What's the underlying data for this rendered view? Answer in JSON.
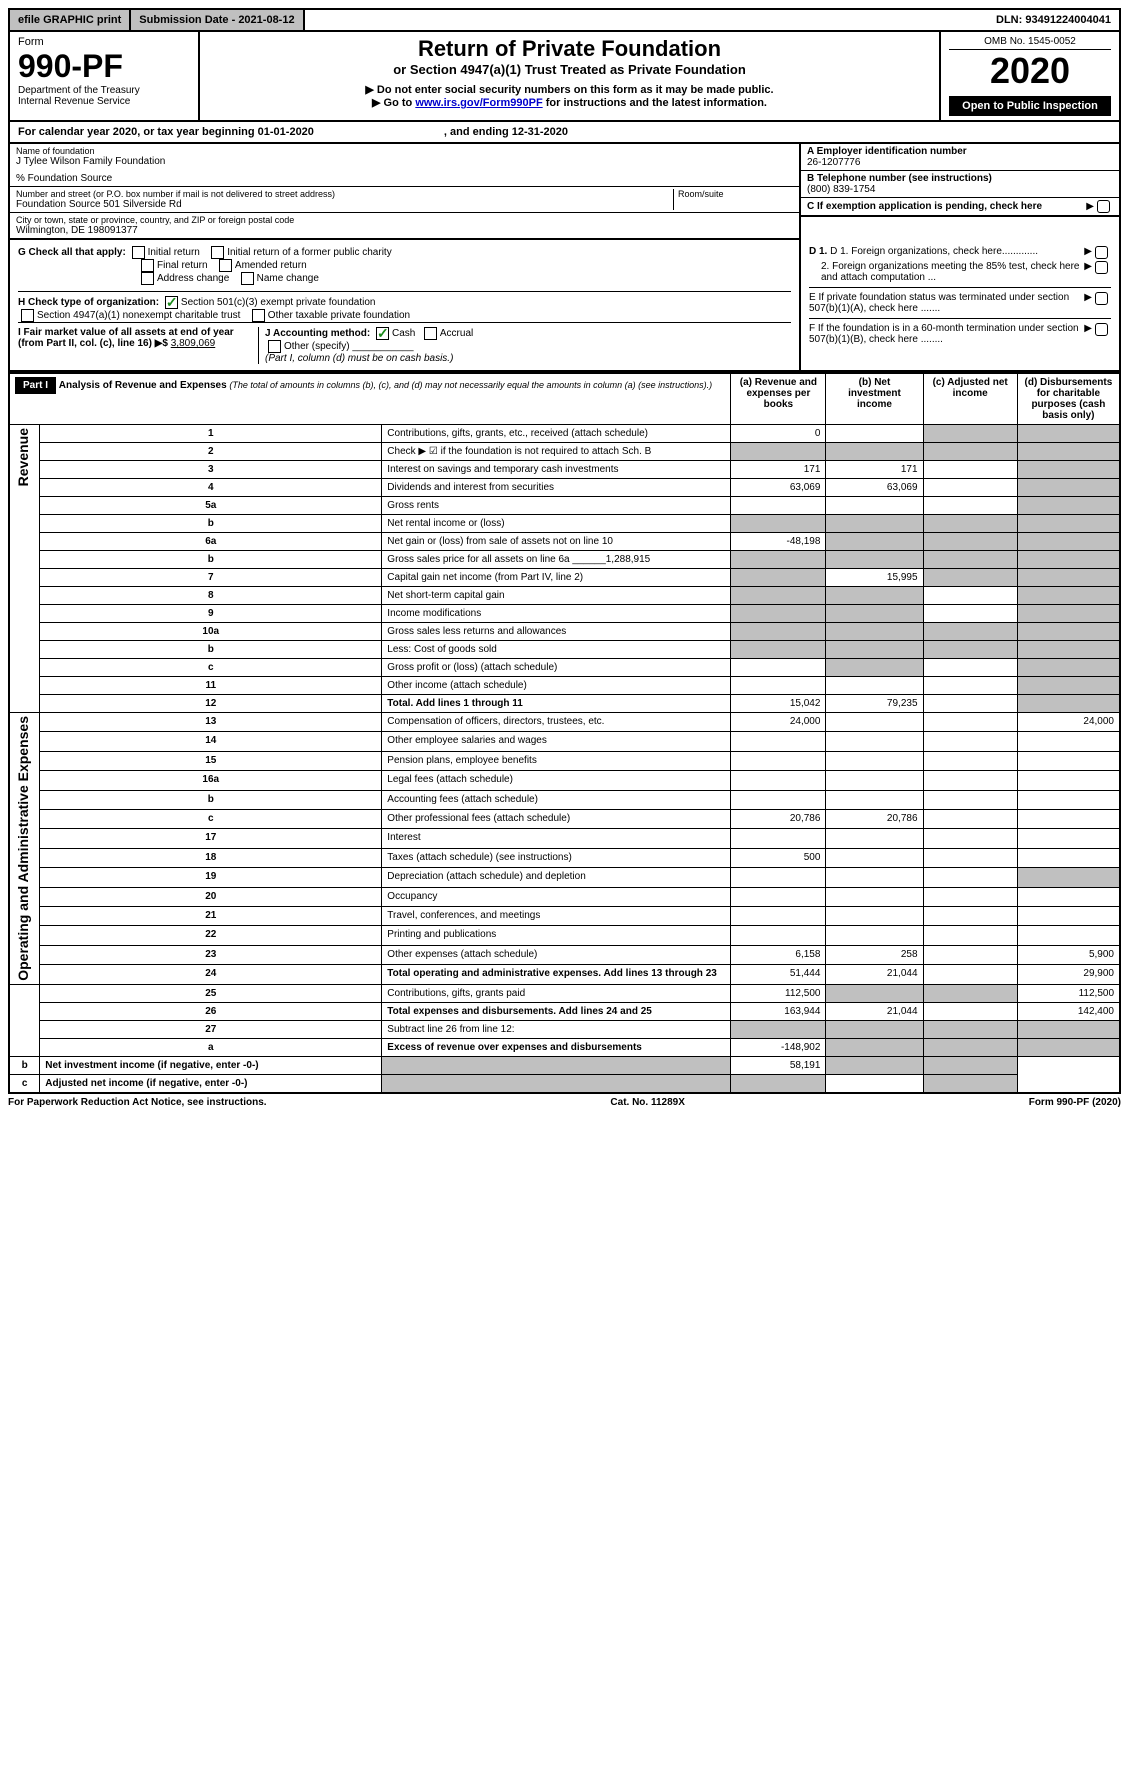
{
  "top_bar": {
    "efile": "efile GRAPHIC print",
    "submission": "Submission Date - 2021-08-12",
    "dln": "DLN: 93491224004041"
  },
  "header": {
    "form_label": "Form",
    "form_number": "990-PF",
    "dept": "Department of the Treasury",
    "irs": "Internal Revenue Service",
    "title": "Return of Private Foundation",
    "subtitle": "or Section 4947(a)(1) Trust Treated as Private Foundation",
    "note1": "▶ Do not enter social security numbers on this form as it may be made public.",
    "note2_pre": "▶ Go to ",
    "note2_link": "www.irs.gov/Form990PF",
    "note2_post": " for instructions and the latest information.",
    "omb": "OMB No. 1545-0052",
    "year": "2020",
    "open": "Open to Public Inspection"
  },
  "cal_year": {
    "text": "For calendar year 2020, or tax year beginning 01-01-2020",
    "ending": ", and ending 12-31-2020"
  },
  "foundation": {
    "name_label": "Name of foundation",
    "name": "J Tylee Wilson Family Foundation",
    "care_of": "% Foundation Source",
    "addr_label": "Number and street (or P.O. box number if mail is not delivered to street address)",
    "addr": "Foundation Source 501 Silverside Rd",
    "room_label": "Room/suite",
    "city_label": "City or town, state or province, country, and ZIP or foreign postal code",
    "city": "Wilmington, DE  198091377",
    "ein_label": "A Employer identification number",
    "ein": "26-1207776",
    "phone_label": "B  Telephone number (see instructions)",
    "phone": "(800) 839-1754",
    "c_label": "C  If exemption application is pending, check here"
  },
  "checks": {
    "g_label": "G Check all that apply:",
    "g_opts": [
      "Initial return",
      "Initial return of a former public charity",
      "Final return",
      "Amended return",
      "Address change",
      "Name change"
    ],
    "h_label": "H Check type of organization:",
    "h_501c3": "Section 501(c)(3) exempt private foundation",
    "h_4947": "Section 4947(a)(1) nonexempt charitable trust",
    "h_other": "Other taxable private foundation",
    "i_label": "I Fair market value of all assets at end of year (from Part II, col. (c), line 16) ▶$ ",
    "i_value": "3,809,069",
    "j_label": "J Accounting method:",
    "j_cash": "Cash",
    "j_accrual": "Accrual",
    "j_other": "Other (specify)",
    "j_note": "(Part I, column (d) must be on cash basis.)",
    "d1": "D 1. Foreign organizations, check here.............",
    "d2": "2. Foreign organizations meeting the 85% test, check here and attach computation ...",
    "e_label": "E  If private foundation status was terminated under section 507(b)(1)(A), check here .......",
    "f_label": "F  If the foundation is in a 60-month termination under section 507(b)(1)(B), check here ........"
  },
  "part1": {
    "label": "Part I",
    "title": "Analysis of Revenue and Expenses",
    "title_note": "(The total of amounts in columns (b), (c), and (d) may not necessarily equal the amounts in column (a) (see instructions).)",
    "col_a": "(a) Revenue and expenses per books",
    "col_b": "(b) Net investment income",
    "col_c": "(c) Adjusted net income",
    "col_d": "(d) Disbursements for charitable purposes (cash basis only)",
    "side_revenue": "Revenue",
    "side_expenses": "Operating and Administrative Expenses"
  },
  "rows": [
    {
      "n": "1",
      "desc": "Contributions, gifts, grants, etc., received (attach schedule)",
      "a": "0",
      "b": "",
      "c": "",
      "d": "",
      "shade_c": true,
      "shade_d": true
    },
    {
      "n": "2",
      "desc": "Check ▶ ☑ if the foundation is not required to attach Sch. B",
      "a": "",
      "b": "",
      "c": "",
      "d": "",
      "shade_all": true
    },
    {
      "n": "3",
      "desc": "Interest on savings and temporary cash investments",
      "a": "171",
      "b": "171",
      "c": "",
      "d": "",
      "shade_d": true
    },
    {
      "n": "4",
      "desc": "Dividends and interest from securities",
      "a": "63,069",
      "b": "63,069",
      "c": "",
      "d": "",
      "shade_d": true
    },
    {
      "n": "5a",
      "desc": "Gross rents",
      "a": "",
      "b": "",
      "c": "",
      "d": "",
      "shade_d": true
    },
    {
      "n": "b",
      "desc": "Net rental income or (loss)",
      "a": "",
      "b": "",
      "c": "",
      "d": "",
      "shade_all": true
    },
    {
      "n": "6a",
      "desc": "Net gain or (loss) from sale of assets not on line 10",
      "a": "-48,198",
      "b": "",
      "c": "",
      "d": "",
      "shade_bcd": true
    },
    {
      "n": "b",
      "desc": "Gross sales price for all assets on line 6a ______1,288,915",
      "a": "",
      "b": "",
      "c": "",
      "d": "",
      "shade_all": true
    },
    {
      "n": "7",
      "desc": "Capital gain net income (from Part IV, line 2)",
      "a": "",
      "b": "15,995",
      "c": "",
      "d": "",
      "shade_a": true,
      "shade_cd": true
    },
    {
      "n": "8",
      "desc": "Net short-term capital gain",
      "a": "",
      "b": "",
      "c": "",
      "d": "",
      "shade_ab": true,
      "shade_d": true
    },
    {
      "n": "9",
      "desc": "Income modifications",
      "a": "",
      "b": "",
      "c": "",
      "d": "",
      "shade_ab": true,
      "shade_d": true
    },
    {
      "n": "10a",
      "desc": "Gross sales less returns and allowances",
      "a": "",
      "b": "",
      "c": "",
      "d": "",
      "shade_all": true
    },
    {
      "n": "b",
      "desc": "Less: Cost of goods sold",
      "a": "",
      "b": "",
      "c": "",
      "d": "",
      "shade_all": true
    },
    {
      "n": "c",
      "desc": "Gross profit or (loss) (attach schedule)",
      "a": "",
      "b": "",
      "c": "",
      "d": "",
      "shade_b": true,
      "shade_d": true
    },
    {
      "n": "11",
      "desc": "Other income (attach schedule)",
      "a": "",
      "b": "",
      "c": "",
      "d": "",
      "shade_d": true
    },
    {
      "n": "12",
      "desc": "Total. Add lines 1 through 11",
      "a": "15,042",
      "b": "79,235",
      "c": "",
      "d": "",
      "shade_d": true,
      "bold": true
    },
    {
      "n": "13",
      "desc": "Compensation of officers, directors, trustees, etc.",
      "a": "24,000",
      "b": "",
      "c": "",
      "d": "24,000"
    },
    {
      "n": "14",
      "desc": "Other employee salaries and wages",
      "a": "",
      "b": "",
      "c": "",
      "d": ""
    },
    {
      "n": "15",
      "desc": "Pension plans, employee benefits",
      "a": "",
      "b": "",
      "c": "",
      "d": ""
    },
    {
      "n": "16a",
      "desc": "Legal fees (attach schedule)",
      "a": "",
      "b": "",
      "c": "",
      "d": ""
    },
    {
      "n": "b",
      "desc": "Accounting fees (attach schedule)",
      "a": "",
      "b": "",
      "c": "",
      "d": ""
    },
    {
      "n": "c",
      "desc": "Other professional fees (attach schedule)",
      "a": "20,786",
      "b": "20,786",
      "c": "",
      "d": ""
    },
    {
      "n": "17",
      "desc": "Interest",
      "a": "",
      "b": "",
      "c": "",
      "d": ""
    },
    {
      "n": "18",
      "desc": "Taxes (attach schedule) (see instructions)",
      "a": "500",
      "b": "",
      "c": "",
      "d": ""
    },
    {
      "n": "19",
      "desc": "Depreciation (attach schedule) and depletion",
      "a": "",
      "b": "",
      "c": "",
      "d": "",
      "shade_d": true
    },
    {
      "n": "20",
      "desc": "Occupancy",
      "a": "",
      "b": "",
      "c": "",
      "d": ""
    },
    {
      "n": "21",
      "desc": "Travel, conferences, and meetings",
      "a": "",
      "b": "",
      "c": "",
      "d": ""
    },
    {
      "n": "22",
      "desc": "Printing and publications",
      "a": "",
      "b": "",
      "c": "",
      "d": ""
    },
    {
      "n": "23",
      "desc": "Other expenses (attach schedule)",
      "a": "6,158",
      "b": "258",
      "c": "",
      "d": "5,900"
    },
    {
      "n": "24",
      "desc": "Total operating and administrative expenses. Add lines 13 through 23",
      "a": "51,444",
      "b": "21,044",
      "c": "",
      "d": "29,900",
      "bold": true
    },
    {
      "n": "25",
      "desc": "Contributions, gifts, grants paid",
      "a": "112,500",
      "b": "",
      "c": "",
      "d": "112,500",
      "shade_bc": true
    },
    {
      "n": "26",
      "desc": "Total expenses and disbursements. Add lines 24 and 25",
      "a": "163,944",
      "b": "21,044",
      "c": "",
      "d": "142,400",
      "bold": true
    },
    {
      "n": "27",
      "desc": "Subtract line 26 from line 12:",
      "a": "",
      "b": "",
      "c": "",
      "d": "",
      "shade_all": true
    },
    {
      "n": "a",
      "desc": "Excess of revenue over expenses and disbursements",
      "a": "-148,902",
      "b": "",
      "c": "",
      "d": "",
      "shade_bcd": true,
      "bold": true
    },
    {
      "n": "b",
      "desc": "Net investment income (if negative, enter -0-)",
      "a": "",
      "b": "58,191",
      "c": "",
      "d": "",
      "shade_a": true,
      "shade_cd": true,
      "bold": true
    },
    {
      "n": "c",
      "desc": "Adjusted net income (if negative, enter -0-)",
      "a": "",
      "b": "",
      "c": "",
      "d": "",
      "shade_ab": true,
      "shade_d": true,
      "bold": true
    }
  ],
  "footer": {
    "left": "For Paperwork Reduction Act Notice, see instructions.",
    "center": "Cat. No. 11289X",
    "right": "Form 990-PF (2020)"
  },
  "colors": {
    "black": "#000000",
    "grey": "#c0c0c0",
    "link": "#0000cc",
    "check": "#1a8a1a"
  }
}
